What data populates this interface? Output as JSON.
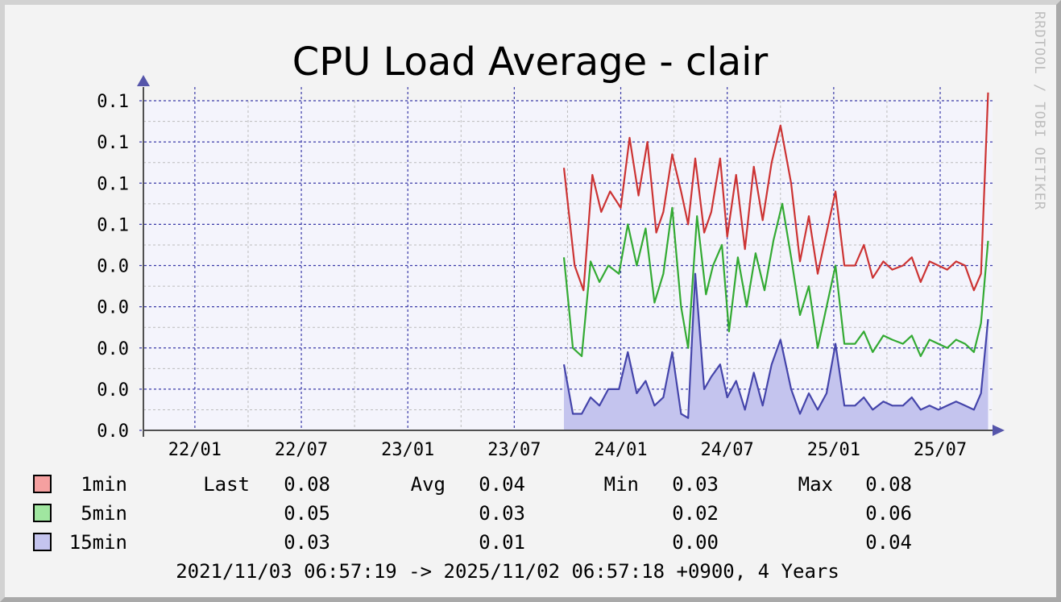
{
  "chart_data": {
    "type": "line",
    "title": "CPU Load Average - clair",
    "watermark": "RRDTOOL / TOBI OETIKER",
    "x_ticks": [
      {
        "label": "22/01",
        "m": 14
      },
      {
        "label": "22/07",
        "m": 20
      },
      {
        "label": "23/01",
        "m": 26
      },
      {
        "label": "23/07",
        "m": 32
      },
      {
        "label": "24/01",
        "m": 38
      },
      {
        "label": "24/07",
        "m": 44
      },
      {
        "label": "25/01",
        "m": 50
      },
      {
        "label": "25/07",
        "m": 56
      }
    ],
    "x_range": {
      "start_month": 11.1,
      "end_month": 58.95
    },
    "y_tick_labels": [
      "0.0",
      "0.0",
      "0.0",
      "0.0",
      "0.0",
      "0.1",
      "0.1",
      "0.1",
      "0.1"
    ],
    "y_tick_values": [
      0,
      0.01,
      0.02,
      0.03,
      0.04,
      0.05,
      0.06,
      0.07,
      0.08
    ],
    "ylim": [
      0,
      0.08
    ],
    "series": [
      {
        "name": "1min",
        "color": "#cc3333",
        "fill": "#f5a0a0",
        "points": [
          [
            34.8,
            0.0637
          ],
          [
            35.4,
            0.04
          ],
          [
            35.9,
            0.034
          ],
          [
            36.4,
            0.062
          ],
          [
            36.9,
            0.053
          ],
          [
            37.4,
            0.058
          ],
          [
            38.0,
            0.054
          ],
          [
            38.5,
            0.071
          ],
          [
            39.0,
            0.057
          ],
          [
            39.5,
            0.07
          ],
          [
            40.0,
            0.048
          ],
          [
            40.4,
            0.053
          ],
          [
            40.9,
            0.067
          ],
          [
            41.4,
            0.058
          ],
          [
            41.8,
            0.05
          ],
          [
            42.2,
            0.066
          ],
          [
            42.7,
            0.048
          ],
          [
            43.1,
            0.053
          ],
          [
            43.6,
            0.066
          ],
          [
            44.0,
            0.047
          ],
          [
            44.5,
            0.062
          ],
          [
            45.0,
            0.044
          ],
          [
            45.5,
            0.064
          ],
          [
            46.0,
            0.051
          ],
          [
            46.5,
            0.065
          ],
          [
            47.0,
            0.074
          ],
          [
            47.6,
            0.06
          ],
          [
            48.1,
            0.041
          ],
          [
            48.6,
            0.052
          ],
          [
            49.1,
            0.038
          ],
          [
            49.6,
            0.048
          ],
          [
            50.1,
            0.058
          ],
          [
            50.6,
            0.04
          ],
          [
            51.2,
            0.04
          ],
          [
            51.7,
            0.045
          ],
          [
            52.2,
            0.037
          ],
          [
            52.8,
            0.041
          ],
          [
            53.3,
            0.039
          ],
          [
            53.9,
            0.04
          ],
          [
            54.4,
            0.042
          ],
          [
            54.9,
            0.036
          ],
          [
            55.4,
            0.041
          ],
          [
            55.9,
            0.04
          ],
          [
            56.4,
            0.039
          ],
          [
            56.9,
            0.041
          ],
          [
            57.4,
            0.04
          ],
          [
            57.9,
            0.034
          ],
          [
            58.3,
            0.038
          ],
          [
            58.7,
            0.082
          ]
        ]
      },
      {
        "name": "5min",
        "color": "#33aa33",
        "fill": "#a0e6a0",
        "points": [
          [
            34.8,
            0.042
          ],
          [
            35.3,
            0.02
          ],
          [
            35.8,
            0.018
          ],
          [
            36.3,
            0.041
          ],
          [
            36.8,
            0.036
          ],
          [
            37.3,
            0.04
          ],
          [
            37.9,
            0.038
          ],
          [
            38.4,
            0.05
          ],
          [
            38.9,
            0.04
          ],
          [
            39.4,
            0.049
          ],
          [
            39.9,
            0.031
          ],
          [
            40.4,
            0.038
          ],
          [
            40.9,
            0.054
          ],
          [
            41.4,
            0.03
          ],
          [
            41.8,
            0.02
          ],
          [
            42.3,
            0.052
          ],
          [
            42.8,
            0.033
          ],
          [
            43.2,
            0.04
          ],
          [
            43.7,
            0.045
          ],
          [
            44.1,
            0.024
          ],
          [
            44.6,
            0.042
          ],
          [
            45.1,
            0.03
          ],
          [
            45.6,
            0.043
          ],
          [
            46.1,
            0.034
          ],
          [
            46.6,
            0.046
          ],
          [
            47.1,
            0.055
          ],
          [
            47.6,
            0.042
          ],
          [
            48.1,
            0.028
          ],
          [
            48.6,
            0.035
          ],
          [
            49.1,
            0.02
          ],
          [
            49.6,
            0.03
          ],
          [
            50.1,
            0.04
          ],
          [
            50.6,
            0.021
          ],
          [
            51.2,
            0.021
          ],
          [
            51.7,
            0.024
          ],
          [
            52.2,
            0.019
          ],
          [
            52.8,
            0.023
          ],
          [
            53.3,
            0.022
          ],
          [
            53.9,
            0.021
          ],
          [
            54.4,
            0.023
          ],
          [
            54.9,
            0.018
          ],
          [
            55.4,
            0.022
          ],
          [
            55.9,
            0.021
          ],
          [
            56.4,
            0.02
          ],
          [
            56.9,
            0.022
          ],
          [
            57.4,
            0.021
          ],
          [
            57.9,
            0.019
          ],
          [
            58.3,
            0.026
          ],
          [
            58.7,
            0.046
          ]
        ]
      },
      {
        "name": "15min",
        "color": "#4444aa",
        "fill": "#c4c4ee",
        "points": [
          [
            34.8,
            0.016
          ],
          [
            35.3,
            0.004
          ],
          [
            35.8,
            0.004
          ],
          [
            36.3,
            0.008
          ],
          [
            36.8,
            0.006
          ],
          [
            37.3,
            0.01
          ],
          [
            37.9,
            0.01
          ],
          [
            38.4,
            0.019
          ],
          [
            38.9,
            0.009
          ],
          [
            39.4,
            0.012
          ],
          [
            39.9,
            0.006
          ],
          [
            40.4,
            0.008
          ],
          [
            40.9,
            0.019
          ],
          [
            41.4,
            0.004
          ],
          [
            41.8,
            0.003
          ],
          [
            42.2,
            0.038
          ],
          [
            42.7,
            0.01
          ],
          [
            43.1,
            0.013
          ],
          [
            43.6,
            0.016
          ],
          [
            44.0,
            0.008
          ],
          [
            44.5,
            0.012
          ],
          [
            45.0,
            0.005
          ],
          [
            45.5,
            0.014
          ],
          [
            46.0,
            0.006
          ],
          [
            46.5,
            0.016
          ],
          [
            47.0,
            0.022
          ],
          [
            47.6,
            0.01
          ],
          [
            48.1,
            0.004
          ],
          [
            48.6,
            0.009
          ],
          [
            49.1,
            0.005
          ],
          [
            49.6,
            0.009
          ],
          [
            50.1,
            0.021
          ],
          [
            50.6,
            0.006
          ],
          [
            51.2,
            0.006
          ],
          [
            51.7,
            0.008
          ],
          [
            52.2,
            0.005
          ],
          [
            52.8,
            0.007
          ],
          [
            53.3,
            0.006
          ],
          [
            53.9,
            0.006
          ],
          [
            54.4,
            0.008
          ],
          [
            54.9,
            0.005
          ],
          [
            55.4,
            0.006
          ],
          [
            55.9,
            0.005
          ],
          [
            56.4,
            0.006
          ],
          [
            56.9,
            0.007
          ],
          [
            57.4,
            0.006
          ],
          [
            57.9,
            0.005
          ],
          [
            58.3,
            0.009
          ],
          [
            58.7,
            0.027
          ]
        ]
      }
    ]
  },
  "legend": {
    "rows": [
      {
        "name": "1min",
        "color": "#f5a0a0",
        "last": "0.08",
        "avg": "0.04",
        "min": "0.03",
        "max": "0.08"
      },
      {
        "name": "5min",
        "color": "#a0e6a0",
        "last": "0.05",
        "avg": "0.03",
        "min": "0.02",
        "max": "0.06"
      },
      {
        "name": "15min",
        "color": "#c4c4ee",
        "last": "0.03",
        "avg": "0.01",
        "min": "0.00",
        "max": "0.04"
      }
    ],
    "last_label": "Last",
    "avg_label": "Avg",
    "min_label": "Min",
    "max_label": "Max"
  },
  "time_range": "2021/11/03 06:57:19 -> 2025/11/02 06:57:18 +0900, 4 Years",
  "colors": {
    "plot_bg": "#f4f4fc",
    "major_grid": "#3a3aa8",
    "minor_grid": "#bcbcbc",
    "axis": "#505050",
    "arrow": "#5555aa"
  }
}
